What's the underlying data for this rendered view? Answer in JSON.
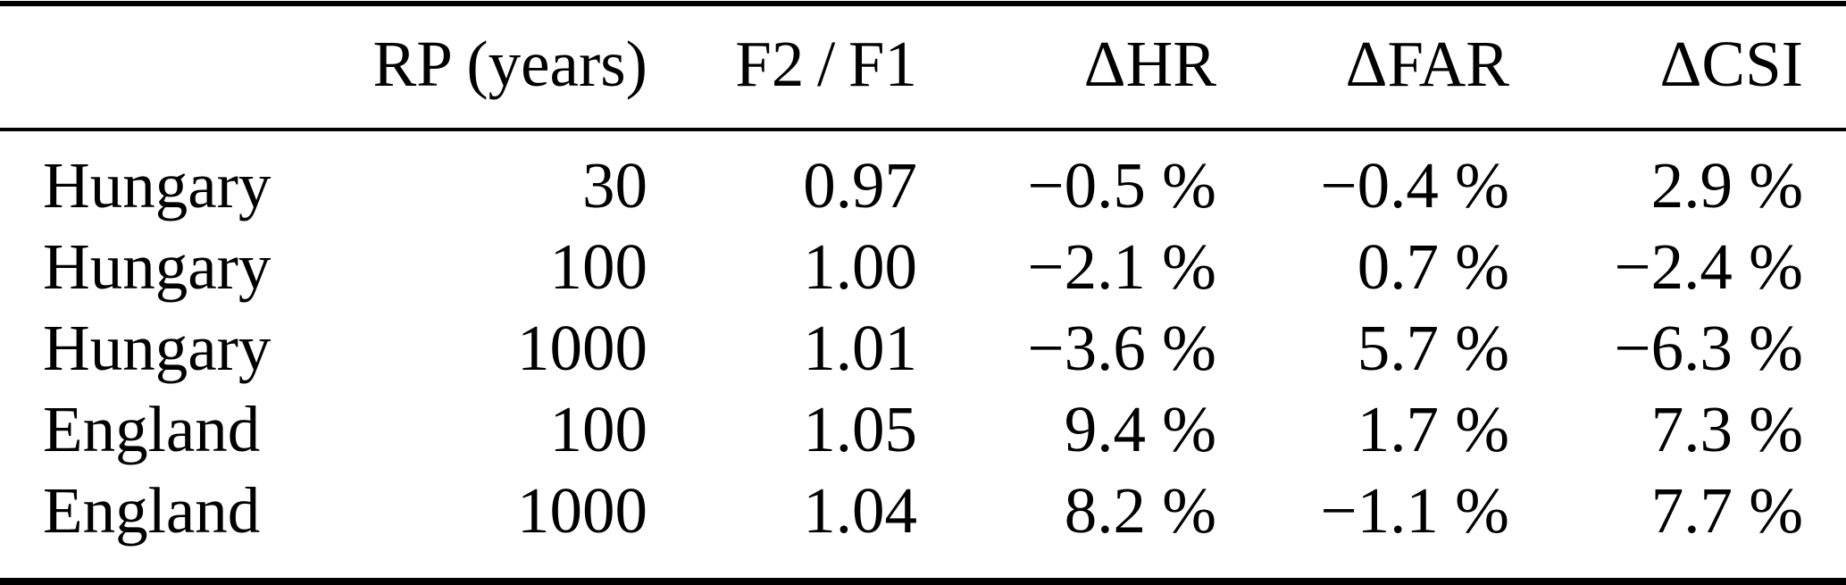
{
  "table": {
    "columns": [
      {
        "key": "region",
        "label": ""
      },
      {
        "key": "rp",
        "label": "RP (years)"
      },
      {
        "key": "f2_f1",
        "label": "F2 / F1"
      },
      {
        "key": "d_hr",
        "label": "ΔHR"
      },
      {
        "key": "d_far",
        "label": "ΔFAR"
      },
      {
        "key": "d_csi",
        "label": "ΔCSI"
      }
    ],
    "rows": [
      {
        "region": "Hungary",
        "rp": "30",
        "f2_f1": "0.97",
        "d_hr": "−0.5 %",
        "d_far": "−0.4 %",
        "d_csi": "2.9 %"
      },
      {
        "region": "Hungary",
        "rp": "100",
        "f2_f1": "1.00",
        "d_hr": "−2.1 %",
        "d_far": "0.7 %",
        "d_csi": "−2.4 %"
      },
      {
        "region": "Hungary",
        "rp": "1000",
        "f2_f1": "1.01",
        "d_hr": "−3.6 %",
        "d_far": "5.7 %",
        "d_csi": "−6.3 %"
      },
      {
        "region": "England",
        "rp": "100",
        "f2_f1": "1.05",
        "d_hr": "9.4 %",
        "d_far": "1.7 %",
        "d_csi": "7.3 %"
      },
      {
        "region": "England",
        "rp": "1000",
        "f2_f1": "1.04",
        "d_hr": "8.2 %",
        "d_far": "−1.1 %",
        "d_csi": "7.7 %"
      }
    ],
    "colors": {
      "text": "#000000",
      "background": "#ffffff",
      "rule": "#000000"
    }
  },
  "chart_data": {
    "type": "table",
    "columns": [
      "",
      "RP (years)",
      "F2 / F1",
      "ΔHR",
      "ΔFAR",
      "ΔCSI"
    ],
    "rows": [
      [
        "Hungary",
        30,
        0.97,
        "−0.5 %",
        "−0.4 %",
        "2.9 %"
      ],
      [
        "Hungary",
        100,
        1.0,
        "−2.1 %",
        "0.7 %",
        "−2.4 %"
      ],
      [
        "Hungary",
        1000,
        1.01,
        "−3.6 %",
        "5.7 %",
        "−6.3 %"
      ],
      [
        "England",
        100,
        1.05,
        "9.4 %",
        "1.7 %",
        "7.3 %"
      ],
      [
        "England",
        1000,
        1.04,
        "8.2 %",
        "−1.1 %",
        "7.7 %"
      ]
    ]
  }
}
